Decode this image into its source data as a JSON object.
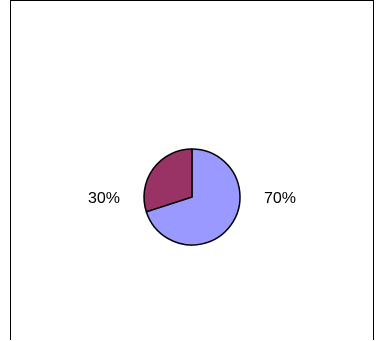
{
  "chart_data": {
    "type": "pie",
    "categories": [
      "",
      ""
    ],
    "values": [
      70,
      30
    ],
    "labels": [
      "70%",
      "30%"
    ],
    "colors": [
      "#9999ff",
      "#993366"
    ],
    "start": "top",
    "direction": "clockwise",
    "legend": "none",
    "title": ""
  }
}
